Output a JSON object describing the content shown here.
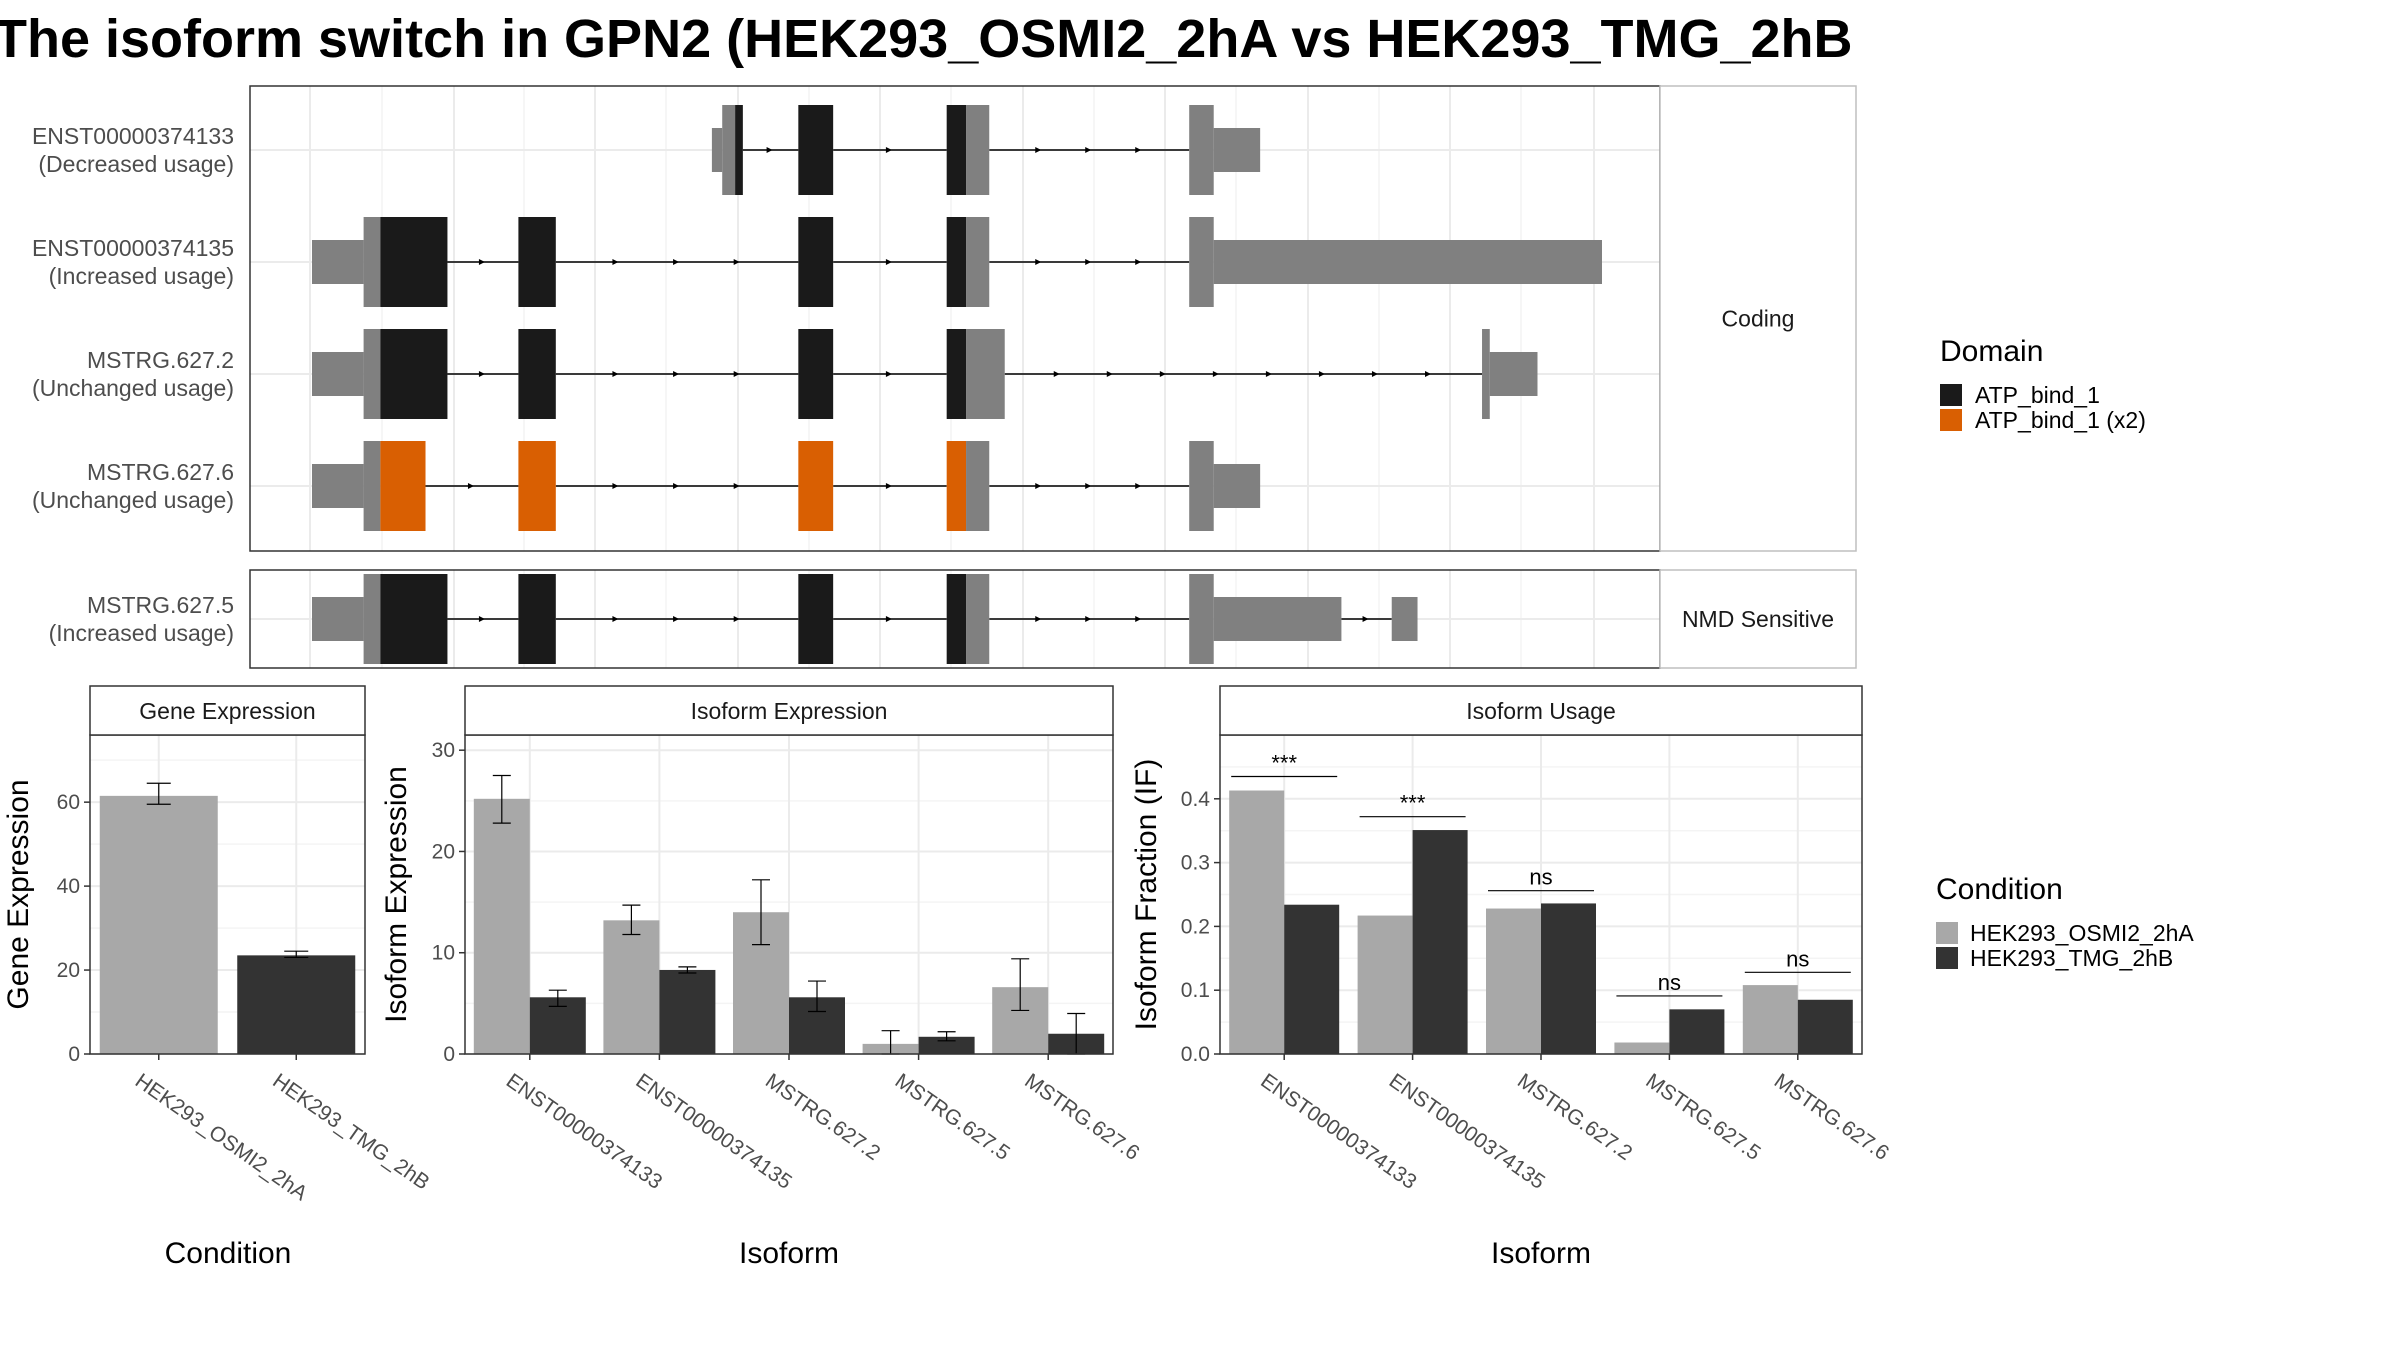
{
  "title": "The isoform switch in GPN2 (HEK293_OSMI2_2hA vs HEK293_TMG_2hB",
  "colors": {
    "condition_a": "#a8a8a8",
    "condition_b": "#333333",
    "utr": "#808080",
    "domain_atp": "#1a1a1a",
    "domain_atp_x2": "#d95f02",
    "grid": "#ebebeb",
    "panel_border": "#333333"
  },
  "structure": {
    "coord_range": [
      0,
      1000
    ],
    "panels": [
      {
        "label": "Coding",
        "transcripts": [
          {
            "id": "ENST00000374133",
            "usage": "(Decreased usage)",
            "segments": [
              {
                "start": 310,
                "end": 318,
                "kind": "utr_thin"
              },
              {
                "start": 318,
                "end": 328,
                "kind": "utr"
              },
              {
                "start": 328,
                "end": 334,
                "kind": "ATP_bind_1"
              },
              {
                "start": 377,
                "end": 404,
                "kind": "ATP_bind_1"
              },
              {
                "start": 492,
                "end": 507,
                "kind": "ATP_bind_1"
              },
              {
                "start": 507,
                "end": 525,
                "kind": "utr"
              },
              {
                "start": 680,
                "end": 699,
                "kind": "utr"
              },
              {
                "start": 699,
                "end": 735,
                "kind": "utr_thin"
              }
            ]
          },
          {
            "id": "ENST00000374135",
            "usage": "(Increased usage)",
            "segments": [
              {
                "start": 0,
                "end": 40,
                "kind": "utr_thin"
              },
              {
                "start": 40,
                "end": 53,
                "kind": "utr"
              },
              {
                "start": 53,
                "end": 105,
                "kind": "ATP_bind_1"
              },
              {
                "start": 160,
                "end": 189,
                "kind": "ATP_bind_1"
              },
              {
                "start": 377,
                "end": 404,
                "kind": "ATP_bind_1"
              },
              {
                "start": 492,
                "end": 507,
                "kind": "ATP_bind_1"
              },
              {
                "start": 507,
                "end": 525,
                "kind": "utr"
              },
              {
                "start": 680,
                "end": 699,
                "kind": "utr"
              },
              {
                "start": 699,
                "end": 1000,
                "kind": "utr_thin"
              }
            ]
          },
          {
            "id": "MSTRG.627.2",
            "usage": "(Unchanged usage)",
            "segments": [
              {
                "start": 0,
                "end": 40,
                "kind": "utr_thin"
              },
              {
                "start": 40,
                "end": 53,
                "kind": "utr"
              },
              {
                "start": 53,
                "end": 105,
                "kind": "ATP_bind_1"
              },
              {
                "start": 160,
                "end": 189,
                "kind": "ATP_bind_1"
              },
              {
                "start": 377,
                "end": 404,
                "kind": "ATP_bind_1"
              },
              {
                "start": 492,
                "end": 507,
                "kind": "ATP_bind_1"
              },
              {
                "start": 507,
                "end": 537,
                "kind": "utr"
              },
              {
                "start": 907,
                "end": 913,
                "kind": "utr"
              },
              {
                "start": 913,
                "end": 950,
                "kind": "utr_thin"
              }
            ]
          },
          {
            "id": "MSTRG.627.6",
            "usage": "(Unchanged usage)",
            "segments": [
              {
                "start": 0,
                "end": 40,
                "kind": "utr_thin"
              },
              {
                "start": 40,
                "end": 53,
                "kind": "utr"
              },
              {
                "start": 53,
                "end": 88,
                "kind": "ATP_bind_1 (x2)"
              },
              {
                "start": 160,
                "end": 189,
                "kind": "ATP_bind_1 (x2)"
              },
              {
                "start": 377,
                "end": 404,
                "kind": "ATP_bind_1 (x2)"
              },
              {
                "start": 492,
                "end": 507,
                "kind": "ATP_bind_1 (x2)"
              },
              {
                "start": 507,
                "end": 525,
                "kind": "utr"
              },
              {
                "start": 680,
                "end": 699,
                "kind": "utr"
              },
              {
                "start": 699,
                "end": 735,
                "kind": "utr_thin"
              }
            ]
          }
        ]
      },
      {
        "label": "NMD Sensitive",
        "transcripts": [
          {
            "id": "MSTRG.627.5",
            "usage": "(Increased usage)",
            "segments": [
              {
                "start": 0,
                "end": 40,
                "kind": "utr_thin"
              },
              {
                "start": 40,
                "end": 53,
                "kind": "utr"
              },
              {
                "start": 53,
                "end": 105,
                "kind": "ATP_bind_1"
              },
              {
                "start": 160,
                "end": 189,
                "kind": "ATP_bind_1"
              },
              {
                "start": 377,
                "end": 404,
                "kind": "ATP_bind_1"
              },
              {
                "start": 492,
                "end": 507,
                "kind": "ATP_bind_1"
              },
              {
                "start": 507,
                "end": 525,
                "kind": "utr"
              },
              {
                "start": 680,
                "end": 699,
                "kind": "utr"
              },
              {
                "start": 699,
                "end": 798,
                "kind": "utr_thin"
              },
              {
                "start": 837,
                "end": 857,
                "kind": "utr_thin"
              }
            ]
          }
        ]
      }
    ]
  },
  "domain_legend": {
    "title": "Domain",
    "items": [
      {
        "label": "ATP_bind_1",
        "color": "#1a1a1a"
      },
      {
        "label": "ATP_bind_1 (x2)",
        "color": "#d95f02"
      }
    ]
  },
  "condition_legend": {
    "title": "Condition",
    "items": [
      {
        "label": "HEK293_OSMI2_2hA",
        "color": "#a8a8a8"
      },
      {
        "label": "HEK293_TMG_2hB",
        "color": "#333333"
      }
    ]
  },
  "chart_data": [
    {
      "type": "bar",
      "title": "Gene Expression",
      "xlabel": "Condition",
      "ylabel": "Gene Expression",
      "categories": [
        "HEK293_OSMI2_2hA",
        "HEK293_TMG_2hB"
      ],
      "values": [
        61.5,
        23.5
      ],
      "errors": [
        [
          59.5,
          64.5
        ],
        [
          23.0,
          24.5
        ]
      ],
      "ylim": [
        0,
        76
      ],
      "yticks": [
        0,
        20,
        40,
        60
      ],
      "grid": true
    },
    {
      "type": "bar",
      "title": "Isoform Expression",
      "xlabel": "Isoform",
      "ylabel": "Isoform Expression",
      "categories": [
        "ENST00000374133",
        "ENST00000374135",
        "MSTRG.627.2",
        "MSTRG.627.5",
        "MSTRG.627.6"
      ],
      "series": [
        {
          "name": "HEK293_OSMI2_2hA",
          "values": [
            25.2,
            13.2,
            14.0,
            1.0,
            6.6
          ],
          "errors": [
            [
              22.8,
              27.5
            ],
            [
              11.8,
              14.7
            ],
            [
              10.8,
              17.2
            ],
            [
              0.0,
              2.3
            ],
            [
              4.3,
              9.4
            ]
          ]
        },
        {
          "name": "HEK293_TMG_2hB",
          "values": [
            5.6,
            8.3,
            5.6,
            1.7,
            2.0
          ],
          "errors": [
            [
              4.7,
              6.3
            ],
            [
              8.0,
              8.6
            ],
            [
              4.2,
              7.2
            ],
            [
              1.3,
              2.2
            ],
            [
              0.0,
              4.0
            ]
          ]
        }
      ],
      "ylim": [
        0,
        31.5
      ],
      "yticks": [
        0,
        10,
        20,
        30
      ],
      "grid": true
    },
    {
      "type": "bar",
      "title": "Isoform Usage",
      "xlabel": "Isoform",
      "ylabel": "Isoform Fraction (IF)",
      "categories": [
        "ENST00000374133",
        "ENST00000374135",
        "MSTRG.627.2",
        "MSTRG.627.5",
        "MSTRG.627.6"
      ],
      "series": [
        {
          "name": "HEK293_OSMI2_2hA",
          "values": [
            0.413,
            0.217,
            0.228,
            0.018,
            0.108
          ]
        },
        {
          "name": "HEK293_TMG_2hB",
          "values": [
            0.234,
            0.351,
            0.236,
            0.07,
            0.085
          ]
        }
      ],
      "significance": [
        {
          "category": "ENST00000374133",
          "label": "***",
          "y": 0.435
        },
        {
          "category": "ENST00000374135",
          "label": "***",
          "y": 0.372
        },
        {
          "category": "MSTRG.627.2",
          "label": "ns",
          "y": 0.256
        },
        {
          "category": "MSTRG.627.5",
          "label": "ns",
          "y": 0.091
        },
        {
          "category": "MSTRG.627.6",
          "label": "ns",
          "y": 0.128
        }
      ],
      "ylim": [
        0,
        0.5
      ],
      "yticks": [
        0.0,
        0.1,
        0.2,
        0.3,
        0.4
      ],
      "grid": true
    }
  ]
}
